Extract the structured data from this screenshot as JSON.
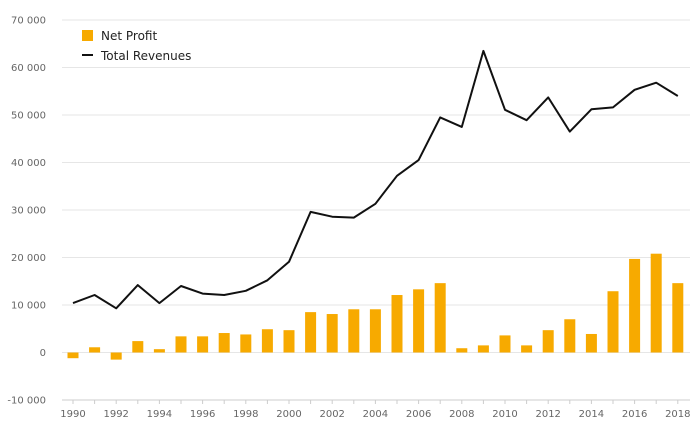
{
  "chart_data": {
    "type": "bar",
    "x": [
      1990,
      1991,
      1992,
      1993,
      1994,
      1995,
      1996,
      1997,
      1998,
      1999,
      2000,
      2001,
      2002,
      2003,
      2004,
      2005,
      2006,
      2007,
      2008,
      2009,
      2010,
      2011,
      2012,
      2013,
      2014,
      2015,
      2016,
      2017,
      2018
    ],
    "x_tick_labels": [
      "1990",
      "1992",
      "1994",
      "1996",
      "1998",
      "2000",
      "2002",
      "2004",
      "2006",
      "2008",
      "2010",
      "2012",
      "2014",
      "2016",
      "2018"
    ],
    "y_tick_labels": [
      "-10 000",
      "0",
      "10 000",
      "20 000",
      "30 000",
      "40 000",
      "50 000",
      "60 000",
      "70 000"
    ],
    "y_ticks": [
      -10000,
      0,
      10000,
      20000,
      30000,
      40000,
      50000,
      60000,
      70000
    ],
    "ylim": [
      -10000,
      70000
    ],
    "grid": true,
    "legend_position": "top-left",
    "series": [
      {
        "name": "Net Profit",
        "type": "bar",
        "color": "#f7aa00",
        "values": [
          -1200,
          1100,
          -1500,
          2400,
          700,
          3400,
          3400,
          4100,
          3800,
          4900,
          4700,
          8500,
          8100,
          9100,
          9100,
          12100,
          13300,
          14600,
          900,
          1500,
          3600,
          1500,
          4700,
          7000,
          3900,
          12900,
          19700,
          20800,
          14600
        ]
      },
      {
        "name": "Total Revenues",
        "type": "line",
        "color": "#111111",
        "values": [
          10400,
          12100,
          9300,
          14200,
          10400,
          14000,
          12400,
          12100,
          13000,
          15200,
          19100,
          29600,
          28600,
          28400,
          31300,
          37200,
          40500,
          49500,
          47500,
          63500,
          51100,
          48900,
          53700,
          46500,
          51200,
          51600,
          55300,
          56800,
          54000
        ]
      }
    ]
  }
}
